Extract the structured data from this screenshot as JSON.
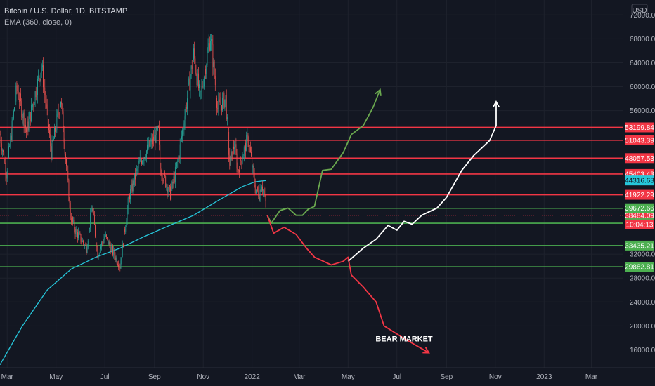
{
  "header": {
    "title": "Bitcoin / U.S. Dollar, 1D, BITSTAMP",
    "indicator": "EMA (360, close, 0)",
    "currency": "USD"
  },
  "colors": {
    "background": "#131722",
    "grid": "#1e222d",
    "up": "#26a69a",
    "down": "#ef5350",
    "ema": "#26c6da",
    "support": "#4caf50",
    "resistance": "#f23645",
    "bull": "#6aa84f",
    "neutral": "#ffffff",
    "bear": "#f23645"
  },
  "chart_data": {
    "type": "line",
    "y_axis": {
      "range": [
        13000,
        74500
      ],
      "ticks": [
        72000,
        68000,
        64000,
        60000,
        56000,
        32000,
        28000,
        24000,
        20000,
        16000
      ],
      "tick_labels": [
        "72000.00",
        "68000.00",
        "64000.00",
        "60000.00",
        "56000.00",
        "32000.00",
        "28000.00",
        "24000.00",
        "20000.00",
        "16000.00"
      ]
    },
    "x_axis": {
      "range": [
        "2021-02-20",
        "2023-04-10"
      ],
      "ticks": [
        "2021-03-01",
        "2021-05-01",
        "2021-07-01",
        "2021-09-01",
        "2021-11-01",
        "2022-01-01",
        "2022-03-01",
        "2022-05-01",
        "2022-07-01",
        "2022-09-01",
        "2022-11-01",
        "2023-01-01",
        "2023-03-01"
      ],
      "tick_labels": [
        "Mar",
        "May",
        "Jul",
        "Sep",
        "Nov",
        "2022",
        "Mar",
        "May",
        "Jul",
        "Sep",
        "Nov",
        "2023",
        "Mar"
      ]
    },
    "resistance_levels": [
      {
        "value": 53199.84,
        "label": "53199.84"
      },
      {
        "value": 51043.39,
        "label": "51043.39"
      },
      {
        "value": 48057.53,
        "label": "48057.53"
      },
      {
        "value": 45403.43,
        "label": "45403.43"
      },
      {
        "value": 41922.29,
        "label": "41922.29"
      },
      {
        "value": 38484.09,
        "label": "38484.09"
      }
    ],
    "support_levels": [
      {
        "value": 39672.66,
        "label": "39672.66"
      },
      {
        "value": 37170.78,
        "label": "37170.78"
      },
      {
        "value": 33435.21,
        "label": "33435.21"
      },
      {
        "value": 29882.81,
        "label": "29882.81"
      }
    ],
    "current_price": {
      "value": 44316.63,
      "label": "44316.63"
    },
    "countdown": "10:04:13",
    "price_series": {
      "name": "Bitcoin / U.S. Dollar",
      "points": [
        [
          "2021-02-20",
          52000
        ],
        [
          "2021-02-28",
          45500
        ],
        [
          "2021-03-13",
          60000
        ],
        [
          "2021-03-25",
          52500
        ],
        [
          "2021-04-13",
          63500
        ],
        [
          "2021-04-25",
          49000
        ],
        [
          "2021-05-07",
          58000
        ],
        [
          "2021-05-12",
          50000
        ],
        [
          "2021-05-19",
          38500
        ],
        [
          "2021-05-25",
          36000
        ],
        [
          "2021-06-08",
          33000
        ],
        [
          "2021-06-15",
          40000
        ],
        [
          "2021-06-22",
          32000
        ],
        [
          "2021-07-01",
          35000
        ],
        [
          "2021-07-20",
          30000
        ],
        [
          "2021-07-31",
          41500
        ],
        [
          "2021-08-14",
          47500
        ],
        [
          "2021-08-23",
          49500
        ],
        [
          "2021-09-06",
          52500
        ],
        [
          "2021-09-08",
          46500
        ],
        [
          "2021-09-21",
          42000
        ],
        [
          "2021-10-01",
          48000
        ],
        [
          "2021-10-20",
          65500
        ],
        [
          "2021-10-28",
          58000
        ],
        [
          "2021-11-10",
          68500
        ],
        [
          "2021-11-19",
          56500
        ],
        [
          "2021-11-29",
          58000
        ],
        [
          "2021-12-04",
          47000
        ],
        [
          "2021-12-10",
          50500
        ],
        [
          "2021-12-14",
          46000
        ],
        [
          "2021-12-27",
          51500
        ],
        [
          "2022-01-05",
          43000
        ],
        [
          "2022-01-10",
          42000
        ],
        [
          "2022-01-13",
          44000
        ],
        [
          "2022-01-18",
          40500
        ]
      ]
    },
    "ema_series": {
      "name": "EMA (360, close, 0)",
      "points": [
        [
          "2021-02-20",
          13500
        ],
        [
          "2021-03-20",
          20000
        ],
        [
          "2021-04-20",
          26000
        ],
        [
          "2021-05-20",
          29500
        ],
        [
          "2021-06-20",
          31500
        ],
        [
          "2021-07-20",
          33000
        ],
        [
          "2021-08-20",
          35000
        ],
        [
          "2021-09-20",
          36800
        ],
        [
          "2021-10-20",
          38500
        ],
        [
          "2021-11-20",
          41000
        ],
        [
          "2021-12-20",
          43300
        ],
        [
          "2022-01-05",
          44100
        ],
        [
          "2022-01-18",
          44300
        ]
      ]
    },
    "projections": [
      {
        "kind": "bull",
        "points": [
          [
            "2022-01-20",
            38500
          ],
          [
            "2022-01-25",
            37200
          ],
          [
            "2022-02-05",
            39300
          ],
          [
            "2022-02-15",
            39700
          ],
          [
            "2022-02-25",
            38500
          ],
          [
            "2022-03-05",
            38500
          ],
          [
            "2022-03-12",
            39500
          ],
          [
            "2022-03-20",
            40000
          ],
          [
            "2022-03-30",
            46000
          ],
          [
            "2022-04-10",
            46200
          ],
          [
            "2022-04-25",
            49000
          ],
          [
            "2022-05-05",
            52000
          ],
          [
            "2022-05-20",
            53500
          ],
          [
            "2022-06-01",
            56500
          ],
          [
            "2022-06-10",
            59500
          ]
        ]
      },
      {
        "kind": "neutral",
        "points": [
          [
            "2022-05-01",
            30800
          ],
          [
            "2022-05-20",
            33000
          ],
          [
            "2022-06-05",
            34500
          ],
          [
            "2022-06-20",
            36800
          ],
          [
            "2022-07-01",
            36000
          ],
          [
            "2022-07-10",
            37500
          ],
          [
            "2022-07-20",
            37000
          ],
          [
            "2022-08-01",
            38500
          ],
          [
            "2022-08-20",
            39700
          ],
          [
            "2022-09-01",
            41500
          ],
          [
            "2022-09-20",
            46000
          ],
          [
            "2022-10-05",
            48500
          ],
          [
            "2022-10-25",
            51000
          ],
          [
            "2022-11-02",
            53500
          ],
          [
            "2022-11-02",
            57500
          ]
        ]
      },
      {
        "kind": "bear",
        "points": [
          [
            "2022-01-20",
            38500
          ],
          [
            "2022-01-28",
            35500
          ],
          [
            "2022-02-10",
            36500
          ],
          [
            "2022-02-25",
            35300
          ],
          [
            "2022-03-10",
            33000
          ],
          [
            "2022-03-20",
            31500
          ],
          [
            "2022-04-10",
            30200
          ],
          [
            "2022-04-25",
            30800
          ],
          [
            "2022-05-01",
            31500
          ],
          [
            "2022-05-05",
            28500
          ],
          [
            "2022-05-20",
            26500
          ],
          [
            "2022-06-05",
            24000
          ],
          [
            "2022-06-15",
            20000
          ],
          [
            "2022-07-10",
            17900
          ],
          [
            "2022-08-10",
            15500
          ]
        ]
      }
    ],
    "annotations": [
      {
        "text": "BEAR MARKET",
        "x": "2022-07-10",
        "y": 17400
      }
    ]
  }
}
